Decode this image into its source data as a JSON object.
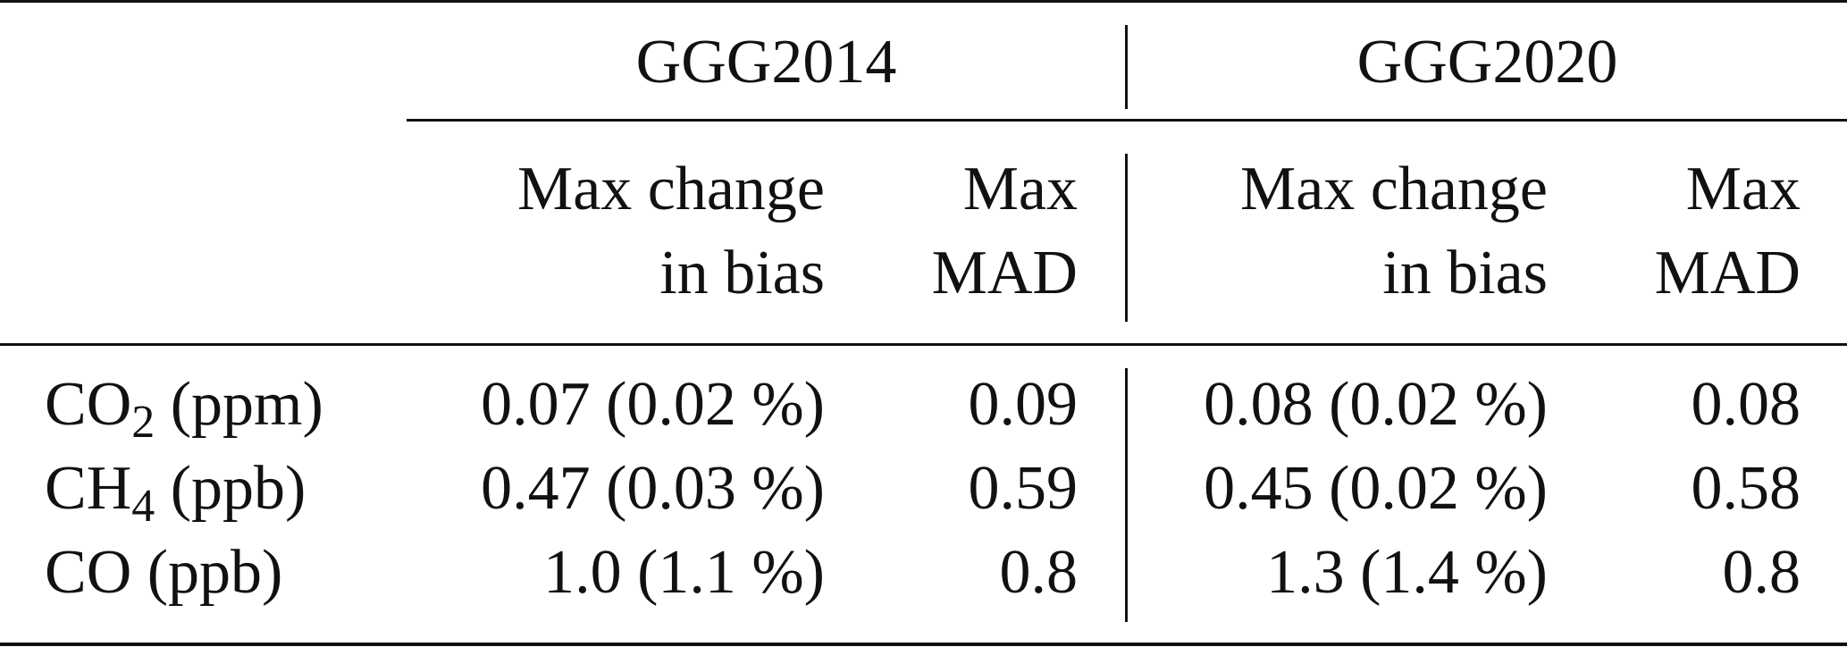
{
  "table": {
    "groups": [
      "GGG2014",
      "GGG2020"
    ],
    "subheaders": {
      "bias_line1": "Max change",
      "bias_line2": "in bias",
      "mad_line1": "Max",
      "mad_line2": "MAD"
    },
    "rows": [
      {
        "species": "CO",
        "species_sub": "2",
        "unit": " (ppm)",
        "ggg2014_bias": "0.07 (0.02 %)",
        "ggg2014_mad": "0.09",
        "ggg2020_bias": "0.08 (0.02 %)",
        "ggg2020_mad": "0.08"
      },
      {
        "species": "CH",
        "species_sub": "4",
        "unit": " (ppb)",
        "ggg2014_bias": "0.47 (0.03 %)",
        "ggg2014_mad": "0.59",
        "ggg2020_bias": "0.45 (0.02 %)",
        "ggg2020_mad": "0.58"
      },
      {
        "species": "CO",
        "species_sub": "",
        "unit": " (ppb)",
        "ggg2014_bias": "1.0 (1.1 %)",
        "ggg2014_mad": "0.8",
        "ggg2020_bias": "1.3 (1.4 %)",
        "ggg2020_mad": "0.8"
      }
    ]
  }
}
